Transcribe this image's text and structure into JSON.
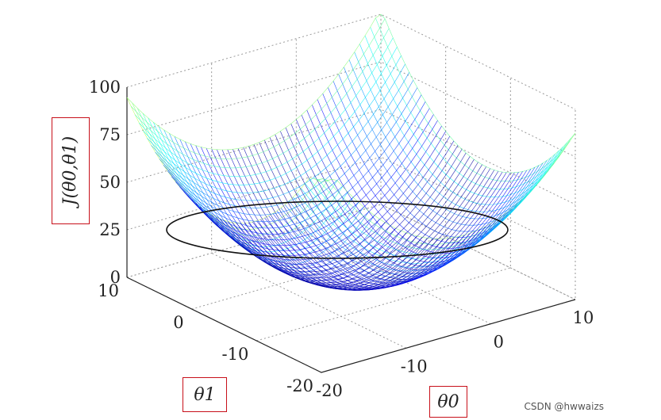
{
  "chart_data": {
    "type": "surface",
    "function": "J(θ0, θ1)",
    "zlabel": "J(θ0,θ1)",
    "xlabel": "θ1",
    "ylabel": "θ0",
    "z_ticks": [
      "0",
      "25",
      "50",
      "75",
      "100"
    ],
    "theta1_ticks": [
      "10",
      "0",
      "-10",
      "-20"
    ],
    "theta0_ticks": [
      "-20",
      "-10",
      "0",
      "10"
    ],
    "zlim": [
      0,
      100
    ],
    "theta1_range": [
      -20,
      10
    ],
    "theta0_range": [
      -20,
      10
    ],
    "grid": true,
    "colormap": "jet",
    "annotation": "black ellipse contour at J ≈ 25"
  },
  "labels": {
    "z_axis": "J(θ0,θ1)",
    "theta1": "θ1",
    "theta0": "θ0"
  },
  "watermark": "CSDN @hwwaizs"
}
